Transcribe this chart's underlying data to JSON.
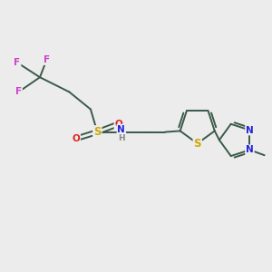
{
  "bg_color": "#ececec",
  "bond_color": "#3a5a4a",
  "atom_colors": {
    "F": "#cc44cc",
    "S_sulfo": "#ccaa00",
    "O": "#dd2222",
    "N": "#2222dd",
    "H": "#888888",
    "S_thio": "#ccaa00"
  },
  "figsize": [
    3.0,
    3.0
  ],
  "dpi": 100
}
